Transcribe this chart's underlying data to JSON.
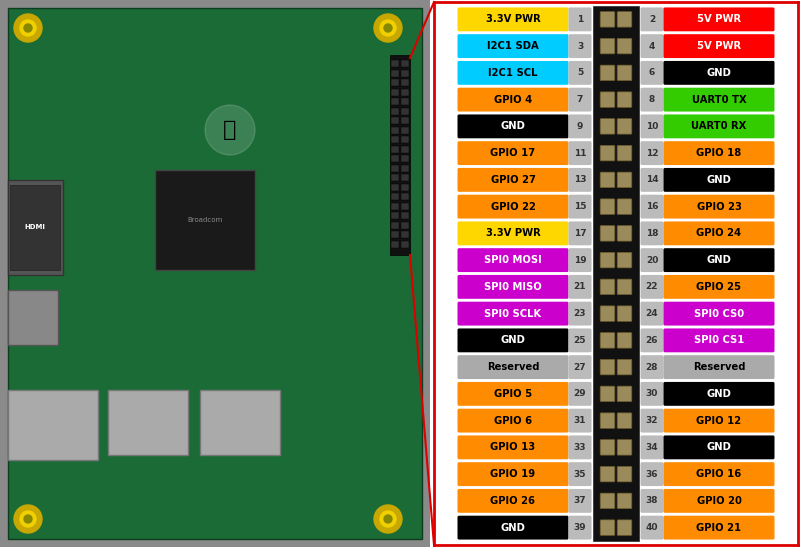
{
  "left_pins": [
    {
      "num": 1,
      "label": "3.3V PWR",
      "color": "#FFD700",
      "text_color": "#000000"
    },
    {
      "num": 3,
      "label": "I2C1 SDA",
      "color": "#00CCFF",
      "text_color": "#000000"
    },
    {
      "num": 5,
      "label": "I2C1 SCL",
      "color": "#00CCFF",
      "text_color": "#000000"
    },
    {
      "num": 7,
      "label": "GPIO 4",
      "color": "#FF8C00",
      "text_color": "#000000"
    },
    {
      "num": 9,
      "label": "GND",
      "color": "#000000",
      "text_color": "#FFFFFF"
    },
    {
      "num": 11,
      "label": "GPIO 17",
      "color": "#FF8C00",
      "text_color": "#000000"
    },
    {
      "num": 13,
      "label": "GPIO 27",
      "color": "#FF8C00",
      "text_color": "#000000"
    },
    {
      "num": 15,
      "label": "GPIO 22",
      "color": "#FF8C00",
      "text_color": "#000000"
    },
    {
      "num": 17,
      "label": "3.3V PWR",
      "color": "#FFD700",
      "text_color": "#000000"
    },
    {
      "num": 19,
      "label": "SPI0 MOSI",
      "color": "#CC00CC",
      "text_color": "#FFFFFF"
    },
    {
      "num": 21,
      "label": "SPI0 MISO",
      "color": "#CC00CC",
      "text_color": "#FFFFFF"
    },
    {
      "num": 23,
      "label": "SPI0 SCLK",
      "color": "#CC00CC",
      "text_color": "#FFFFFF"
    },
    {
      "num": 25,
      "label": "GND",
      "color": "#000000",
      "text_color": "#FFFFFF"
    },
    {
      "num": 27,
      "label": "Reserved",
      "color": "#AAAAAA",
      "text_color": "#000000"
    },
    {
      "num": 29,
      "label": "GPIO 5",
      "color": "#FF8C00",
      "text_color": "#000000"
    },
    {
      "num": 31,
      "label": "GPIO 6",
      "color": "#FF8C00",
      "text_color": "#000000"
    },
    {
      "num": 33,
      "label": "GPIO 13",
      "color": "#FF8C00",
      "text_color": "#000000"
    },
    {
      "num": 35,
      "label": "GPIO 19",
      "color": "#FF8C00",
      "text_color": "#000000"
    },
    {
      "num": 37,
      "label": "GPIO 26",
      "color": "#FF8C00",
      "text_color": "#000000"
    },
    {
      "num": 39,
      "label": "GND",
      "color": "#000000",
      "text_color": "#FFFFFF"
    }
  ],
  "right_pins": [
    {
      "num": 2,
      "label": "5V PWR",
      "color": "#FF0000",
      "text_color": "#FFFFFF"
    },
    {
      "num": 4,
      "label": "5V PWR",
      "color": "#FF0000",
      "text_color": "#FFFFFF"
    },
    {
      "num": 6,
      "label": "GND",
      "color": "#000000",
      "text_color": "#FFFFFF"
    },
    {
      "num": 8,
      "label": "UART0 TX",
      "color": "#33CC00",
      "text_color": "#000000"
    },
    {
      "num": 10,
      "label": "UART0 RX",
      "color": "#33CC00",
      "text_color": "#000000"
    },
    {
      "num": 12,
      "label": "GPIO 18",
      "color": "#FF8C00",
      "text_color": "#000000"
    },
    {
      "num": 14,
      "label": "GND",
      "color": "#000000",
      "text_color": "#FFFFFF"
    },
    {
      "num": 16,
      "label": "GPIO 23",
      "color": "#FF8C00",
      "text_color": "#000000"
    },
    {
      "num": 18,
      "label": "GPIO 24",
      "color": "#FF8C00",
      "text_color": "#000000"
    },
    {
      "num": 20,
      "label": "GND",
      "color": "#000000",
      "text_color": "#FFFFFF"
    },
    {
      "num": 22,
      "label": "GPIO 25",
      "color": "#FF8C00",
      "text_color": "#000000"
    },
    {
      "num": 24,
      "label": "SPI0 CS0",
      "color": "#CC00CC",
      "text_color": "#FFFFFF"
    },
    {
      "num": 26,
      "label": "SPI0 CS1",
      "color": "#CC00CC",
      "text_color": "#FFFFFF"
    },
    {
      "num": 28,
      "label": "Reserved",
      "color": "#AAAAAA",
      "text_color": "#000000"
    },
    {
      "num": 30,
      "label": "GND",
      "color": "#000000",
      "text_color": "#FFFFFF"
    },
    {
      "num": 32,
      "label": "GPIO 12",
      "color": "#FF8C00",
      "text_color": "#000000"
    },
    {
      "num": 34,
      "label": "GND",
      "color": "#000000",
      "text_color": "#FFFFFF"
    },
    {
      "num": 36,
      "label": "GPIO 16",
      "color": "#FF8C00",
      "text_color": "#000000"
    },
    {
      "num": 38,
      "label": "GPIO 20",
      "color": "#FF8C00",
      "text_color": "#000000"
    },
    {
      "num": 40,
      "label": "GPIO 21",
      "color": "#FF8C00",
      "text_color": "#000000"
    }
  ],
  "background_color": "#FFFFFF",
  "pcb_bg_color": "#8a8a8a",
  "pcb_board_color": "#1a6b35",
  "connector_color": "#111111",
  "pin_gold_color": "#9B8B5A",
  "pin_gold_edge": "#6B5B2A",
  "pin_num_bg": "#BBBBBB",
  "pin_num_text": "#333333",
  "diagram_bg": "#FFFFFF",
  "red_line_color": "#DD0000",
  "figure_width": 8.0,
  "figure_height": 5.47
}
